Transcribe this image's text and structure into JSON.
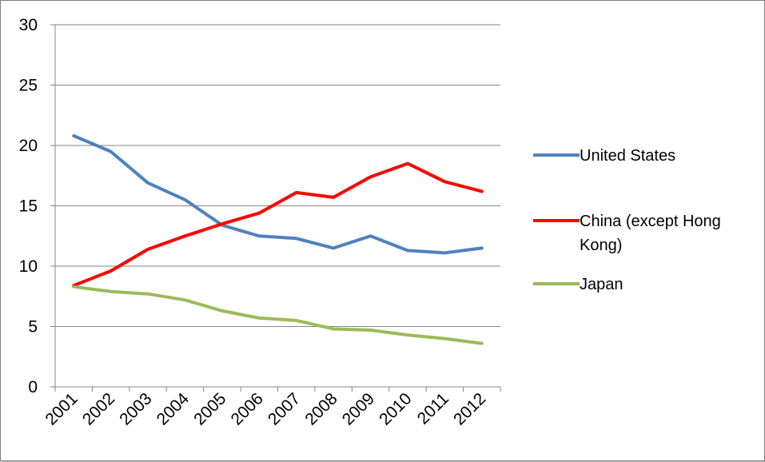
{
  "chart_data": {
    "type": "line",
    "title": "",
    "xlabel": "",
    "ylabel": "",
    "categories": [
      "2001",
      "2002",
      "2003",
      "2004",
      "2005",
      "2006",
      "2007",
      "2008",
      "2009",
      "2010",
      "2011",
      "2012"
    ],
    "ylim": [
      0,
      30
    ],
    "yticks": [
      0,
      5,
      10,
      15,
      20,
      25,
      30
    ],
    "grid": true,
    "legend_position": "right",
    "series": [
      {
        "name": "United States",
        "color": "#4f81bd",
        "values": [
          20.8,
          19.5,
          16.9,
          15.5,
          13.4,
          12.5,
          12.3,
          11.5,
          12.5,
          11.3,
          11.1,
          11.5
        ]
      },
      {
        "name": "China (except Hong Kong)",
        "legend_lines": [
          "China (except Hong",
          "Kong)"
        ],
        "color": "#ff0000",
        "values": [
          8.4,
          9.6,
          11.4,
          12.5,
          13.5,
          14.4,
          16.1,
          15.7,
          17.4,
          18.5,
          17.0,
          16.2
        ]
      },
      {
        "name": "Japan",
        "color": "#9bbb59",
        "values": [
          8.3,
          7.9,
          7.7,
          7.2,
          6.3,
          5.7,
          5.5,
          4.8,
          4.7,
          4.3,
          4.0,
          3.6
        ]
      }
    ]
  }
}
